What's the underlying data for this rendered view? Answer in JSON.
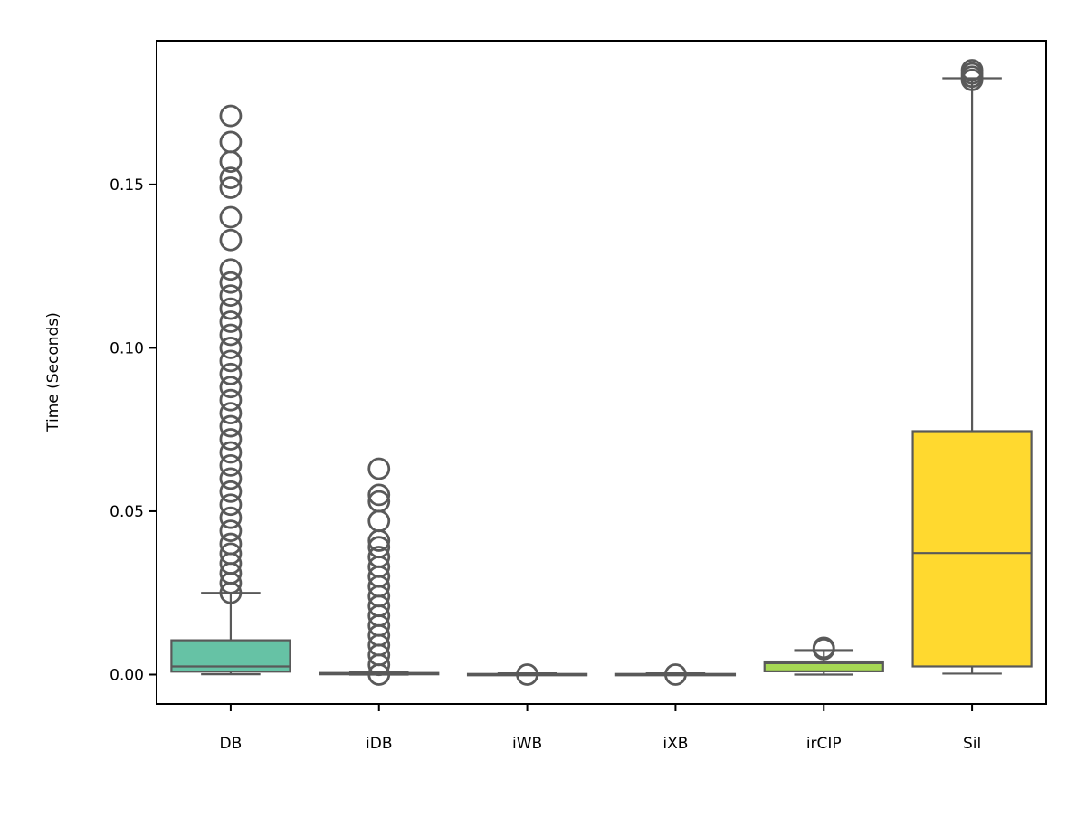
{
  "chart_data": {
    "type": "box",
    "title": "",
    "xlabel": "",
    "ylabel": "Time (Seconds)",
    "ylim": [
      -0.009,
      0.194
    ],
    "y_ticks": [
      0.0,
      0.05,
      0.1,
      0.15
    ],
    "y_tick_labels": [
      "0.00",
      "0.05",
      "0.10",
      "0.15"
    ],
    "grid": false,
    "legend": null,
    "categories": [
      "DB",
      "iDB",
      "iWB",
      "iXB",
      "irCIP",
      "Sil"
    ],
    "colors": [
      "#66c2a5",
      "#fc8d62",
      "#8da0cb",
      "#e78ac3",
      "#a6d854",
      "#ffd92f"
    ],
    "boxes": [
      {
        "min": 0.0001,
        "q1": 0.0009,
        "median": 0.0025,
        "q3": 0.0105,
        "max": 0.025,
        "outliers": [
          0.025,
          0.028,
          0.031,
          0.034,
          0.037,
          0.04,
          0.044,
          0.048,
          0.052,
          0.056,
          0.06,
          0.064,
          0.068,
          0.072,
          0.076,
          0.08,
          0.084,
          0.088,
          0.092,
          0.096,
          0.1,
          0.104,
          0.108,
          0.112,
          0.116,
          0.12,
          0.124,
          0.133,
          0.14,
          0.149,
          0.152,
          0.157,
          0.163,
          0.171
        ]
      },
      {
        "min": 0.0,
        "q1": 0.0001,
        "median": 0.0002,
        "q3": 0.0005,
        "max": 0.0008,
        "outliers": [
          0.0,
          0.003,
          0.006,
          0.009,
          0.012,
          0.015,
          0.018,
          0.021,
          0.024,
          0.027,
          0.03,
          0.033,
          0.036,
          0.039,
          0.041,
          0.047,
          0.053,
          0.055,
          0.063
        ]
      },
      {
        "min": 0.0,
        "q1": 0.0,
        "median": 0.0001,
        "q3": 0.0002,
        "max": 0.0004,
        "outliers": [
          0.0
        ]
      },
      {
        "min": 0.0,
        "q1": 0.0,
        "median": 0.0001,
        "q3": 0.0002,
        "max": 0.0004,
        "outliers": [
          0.0
        ]
      },
      {
        "min": 0.0,
        "q1": 0.001,
        "median": 0.0035,
        "q3": 0.004,
        "max": 0.0075,
        "outliers": [
          0.0078,
          0.0082
        ]
      },
      {
        "min": 0.0003,
        "q1": 0.0025,
        "median": 0.0372,
        "q3": 0.0745,
        "max": 0.1825,
        "outliers": [
          0.182,
          0.183,
          0.184,
          0.185
        ]
      }
    ]
  }
}
